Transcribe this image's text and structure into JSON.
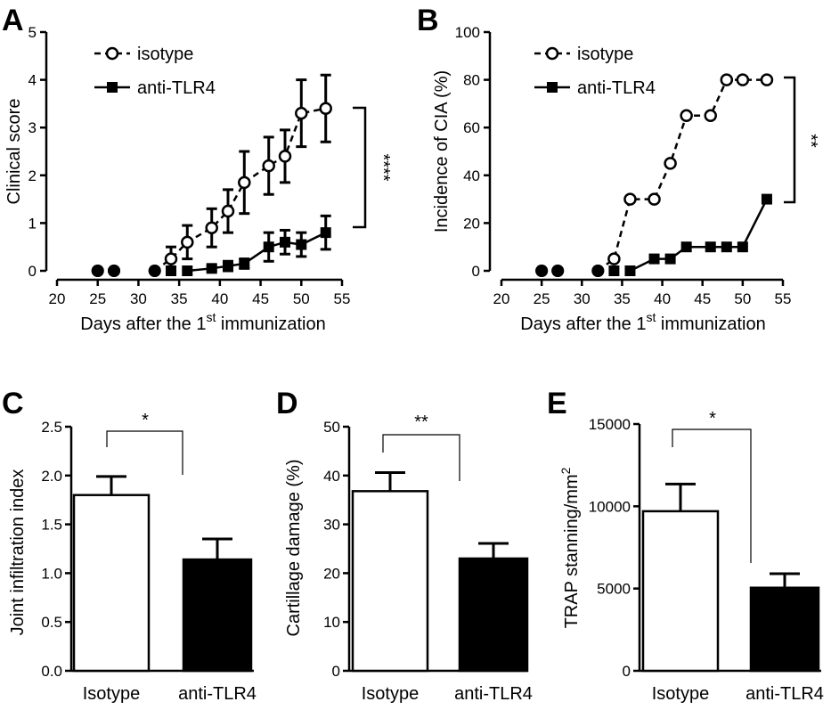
{
  "chart_data": [
    {
      "panel": "A",
      "type": "line",
      "xlabel": "Days after the 1",
      "xlabel_sup": "st",
      "xlabel_tail": " immunization",
      "ylabel": "Clinical score",
      "xlim": [
        20,
        55
      ],
      "ylim": [
        0,
        5
      ],
      "xticks": [
        20,
        25,
        30,
        35,
        40,
        45,
        50,
        55
      ],
      "yticks": [
        0,
        1,
        2,
        3,
        4,
        5
      ],
      "significance": "****",
      "legend": [
        "isotype",
        "anti-TLR4"
      ],
      "series": [
        {
          "name": "isotype",
          "style": "dashed-open-circle",
          "x": [
            25,
            27,
            32,
            34,
            36,
            39,
            41,
            43,
            46,
            48,
            50,
            53
          ],
          "y": [
            0,
            0,
            0,
            0.25,
            0.6,
            0.9,
            1.25,
            1.85,
            2.2,
            2.4,
            3.3,
            3.4
          ],
          "err": [
            0,
            0,
            0,
            0.25,
            0.35,
            0.4,
            0.45,
            0.65,
            0.6,
            0.55,
            0.7,
            0.7
          ]
        },
        {
          "name": "anti-TLR4",
          "style": "solid-filled-square",
          "x": [
            25,
            27,
            32,
            34,
            36,
            39,
            41,
            43,
            46,
            48,
            50,
            53
          ],
          "y": [
            0,
            0,
            0,
            0,
            0,
            0.05,
            0.1,
            0.15,
            0.5,
            0.6,
            0.55,
            0.8
          ],
          "err": [
            0,
            0,
            0,
            0,
            0,
            0.05,
            0.1,
            0.1,
            0.3,
            0.25,
            0.25,
            0.35
          ]
        }
      ]
    },
    {
      "panel": "B",
      "type": "line",
      "xlabel": "Days after the 1",
      "xlabel_sup": "st",
      "xlabel_tail": " immunization",
      "ylabel": "Incidence of CIA (%)",
      "xlim": [
        20,
        55
      ],
      "ylim": [
        0,
        100
      ],
      "xticks": [
        20,
        25,
        30,
        35,
        40,
        45,
        50,
        55
      ],
      "yticks": [
        0,
        20,
        40,
        60,
        80,
        100
      ],
      "significance": "**",
      "legend": [
        "isotype",
        "anti-TLR4"
      ],
      "series": [
        {
          "name": "isotype",
          "style": "dashed-open-circle",
          "x": [
            25,
            27,
            32,
            34,
            36,
            39,
            41,
            43,
            46,
            48,
            50,
            53
          ],
          "y": [
            0,
            0,
            0,
            5,
            30,
            30,
            45,
            65,
            65,
            80,
            80,
            80
          ]
        },
        {
          "name": "anti-TLR4",
          "style": "solid-filled-square",
          "x": [
            25,
            27,
            32,
            34,
            36,
            39,
            41,
            43,
            46,
            48,
            50,
            53
          ],
          "y": [
            0,
            0,
            0,
            0,
            0,
            5,
            5,
            10,
            10,
            10,
            10,
            30
          ]
        }
      ]
    },
    {
      "panel": "C",
      "type": "bar",
      "ylabel": "Joint infiltration index",
      "categories": [
        "Isotype",
        "anti-TLR4"
      ],
      "values": [
        1.8,
        1.14
      ],
      "errors": [
        0.19,
        0.21
      ],
      "ylim": [
        0,
        2.5
      ],
      "yticks": [
        "0.0",
        "0.5",
        "1.0",
        "1.5",
        "2.0",
        "2.5"
      ],
      "significance": "*"
    },
    {
      "panel": "D",
      "type": "bar",
      "ylabel": "Cartillage damage (%)",
      "categories": [
        "Isotype",
        "anti-TLR4"
      ],
      "values": [
        36.8,
        23
      ],
      "errors": [
        3.8,
        3.1
      ],
      "ylim": [
        0,
        50
      ],
      "yticks": [
        "0",
        "10",
        "20",
        "30",
        "40",
        "50"
      ],
      "significance": "**"
    },
    {
      "panel": "E",
      "type": "bar",
      "ylabel": "TRAP stanning/mm",
      "ylabel_sup": "2",
      "categories": [
        "Isotype",
        "anti-TLR4"
      ],
      "values": [
        9700,
        5050
      ],
      "errors": [
        1650,
        850
      ],
      "ylim": [
        0,
        15000
      ],
      "yticks": [
        "0",
        "5000",
        "10000",
        "15000"
      ],
      "significance": "*"
    }
  ]
}
